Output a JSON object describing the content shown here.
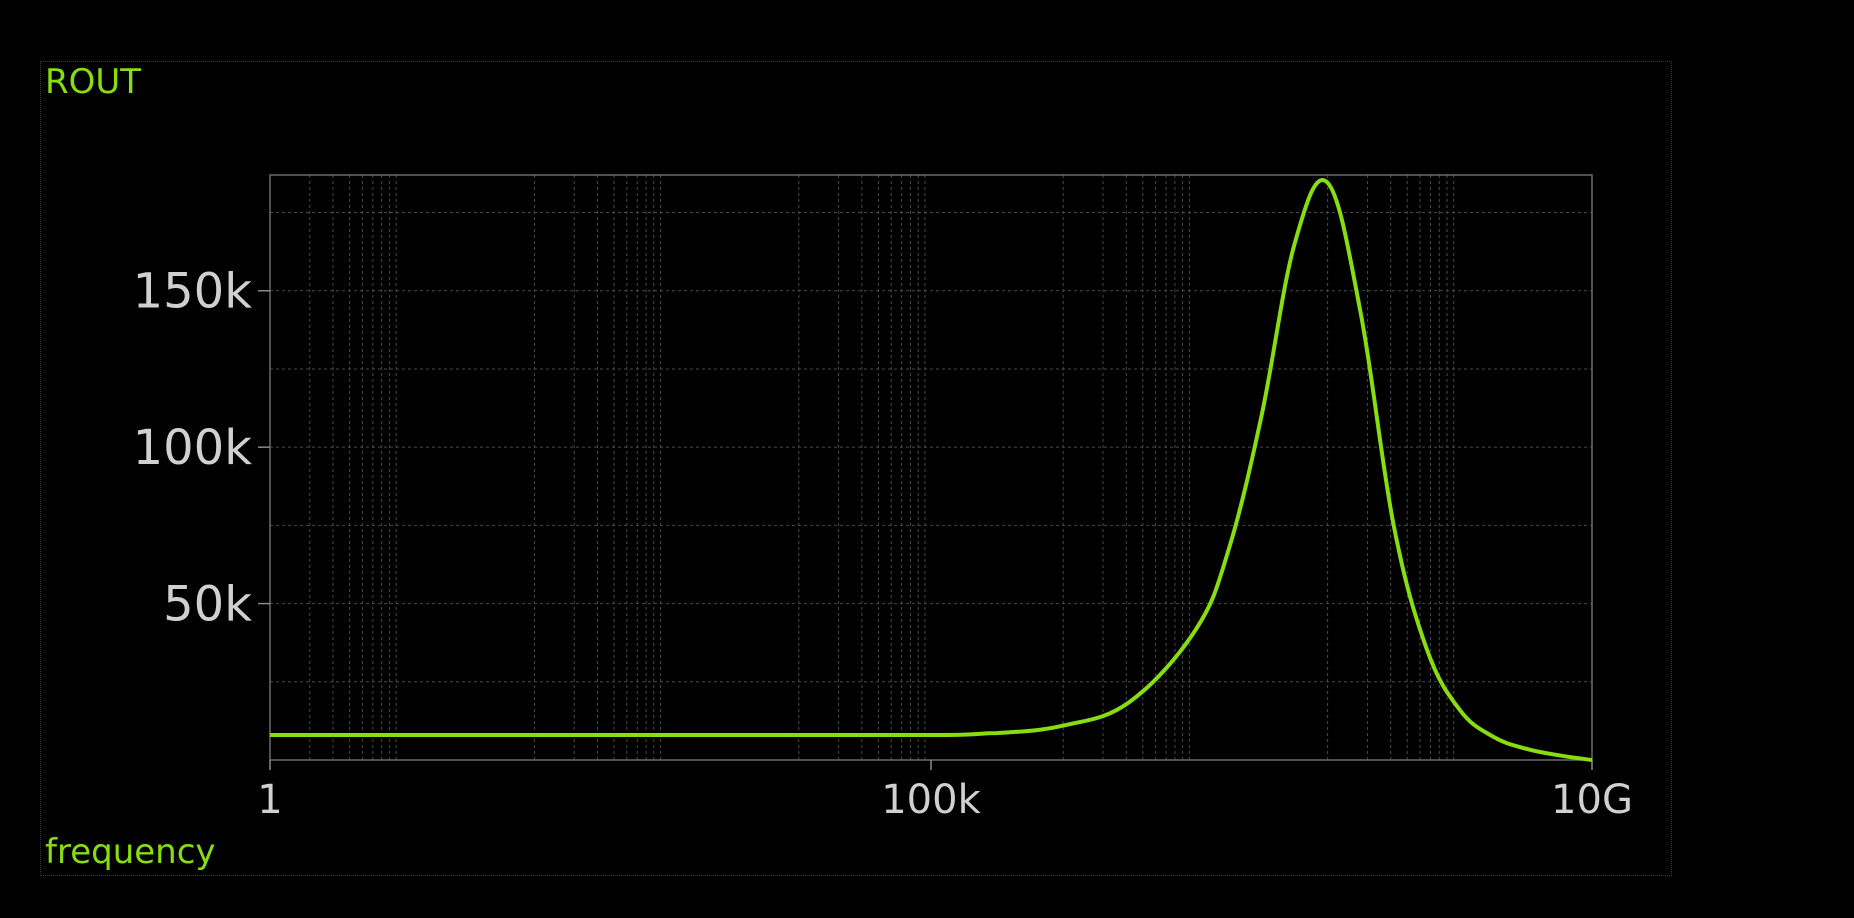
{
  "chart_data": {
    "type": "line",
    "title": "ROUT",
    "xlabel": "frequency",
    "ylabel": "",
    "x_scale": "log",
    "xlim": [
      1,
      10000000000
    ],
    "ylim": [
      0,
      187000
    ],
    "grid": true,
    "x_tick_labels": [
      {
        "value": 1,
        "label": "1"
      },
      {
        "value": 100000,
        "label": "100k"
      },
      {
        "value": 10000000000,
        "label": "10G"
      }
    ],
    "y_tick_labels": [
      {
        "value": 50000,
        "label": "50k"
      },
      {
        "value": 100000,
        "label": "100k"
      },
      {
        "value": 150000,
        "label": "150k"
      }
    ],
    "color": "#88dd11",
    "series": [
      {
        "x": [
          1,
          1000,
          100000,
          316228,
          1000000,
          3162278,
          10000000,
          17782794,
          31622777,
          56234133,
          100000000,
          177827941,
          316227766,
          562341325,
          1000000000,
          1778279410,
          3162277660,
          5623413252,
          10000000000
        ],
        "y": [
          8000,
          8000,
          8000,
          8600,
          11000,
          18500,
          41500,
          67000,
          110000,
          165000,
          184500,
          143000,
          75000,
          35500,
          16000,
          7500,
          3600,
          1500,
          0
        ]
      }
    ]
  }
}
